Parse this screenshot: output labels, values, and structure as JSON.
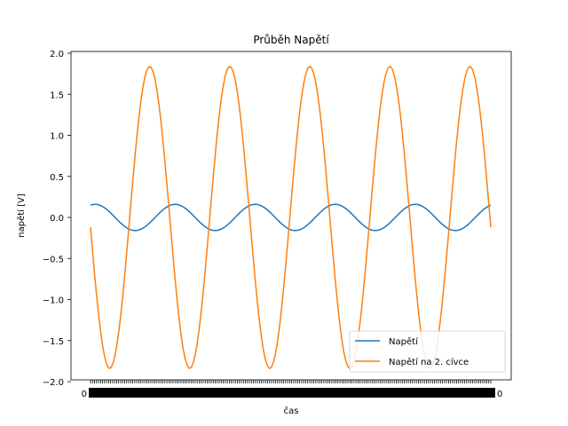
{
  "chart_data": {
    "type": "line",
    "title": "Průběh Napětí",
    "xlabel": "čas",
    "ylabel": "napětí [V]",
    "ylim": [
      -2.0,
      2.0
    ],
    "xlim": [
      0,
      1
    ],
    "yticks": [
      -2.0,
      -1.5,
      -1.0,
      -0.5,
      0.0,
      0.5,
      1.0,
      1.5,
      2.0
    ],
    "ytick_labels": [
      "−2.0",
      "−1.5",
      "−1.0",
      "−0.5",
      "0.0",
      "0.5",
      "1.0",
      "1.5",
      "2.0"
    ],
    "xtick_labels_visible": {
      "first": "0",
      "last": "0"
    },
    "x_tick_count": 200,
    "grid": false,
    "legend_position": "lower-right",
    "series": [
      {
        "name": "Napětí",
        "color": "#1f77b4",
        "waveform": "sine",
        "amplitude": 0.16,
        "cycles": 5,
        "phase_start": 0.15,
        "step_count": 200
      },
      {
        "name": "Napětí na 2. cívce",
        "color": "#ff7f0e",
        "waveform": "sine",
        "amplitude": 1.84,
        "cycles": 5,
        "phase_start": -0.12,
        "step_count": 200
      }
    ]
  }
}
